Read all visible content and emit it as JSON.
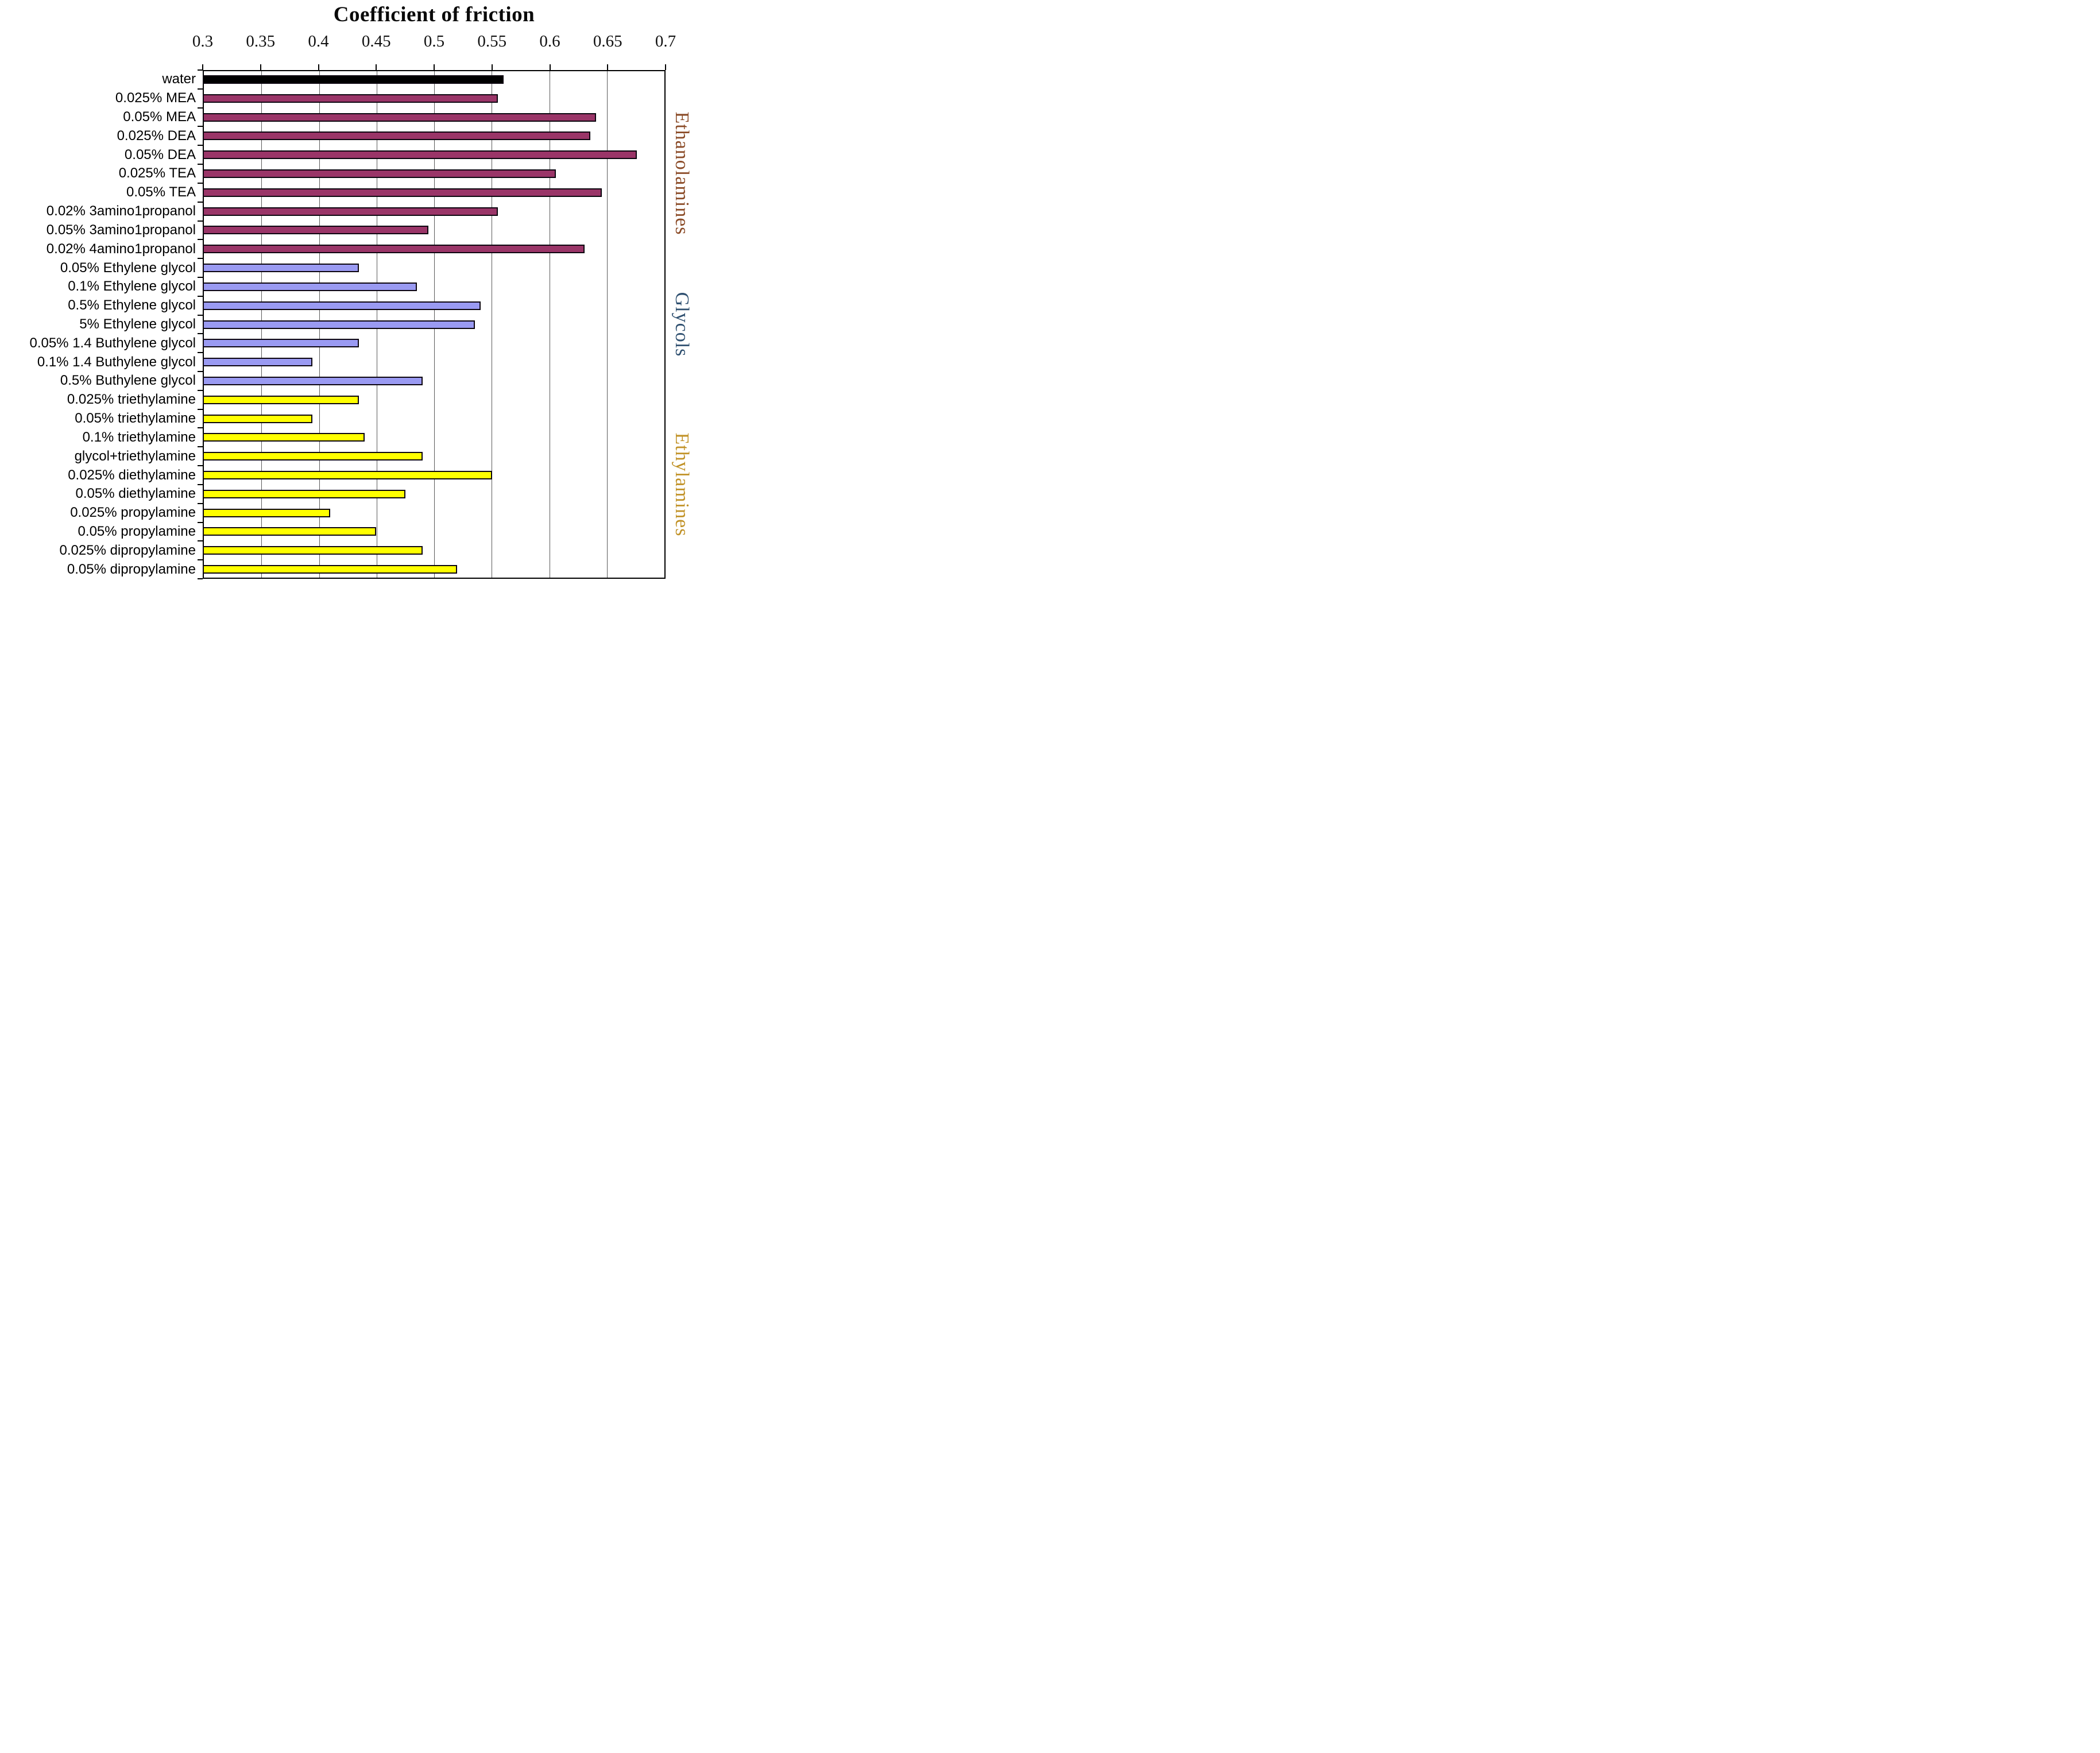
{
  "chart_data": {
    "type": "bar",
    "orientation": "horizontal",
    "title": "Coefficient of friction",
    "xlabel": "",
    "ylabel": "",
    "xlim": [
      0.3,
      0.7
    ],
    "x_ticks": [
      0.3,
      0.35,
      0.4,
      0.45,
      0.5,
      0.55,
      0.6,
      0.65,
      0.7
    ],
    "x_tick_labels": [
      "0.3",
      "0.35",
      "0.4",
      "0.45",
      "0.5",
      "0.55",
      "0.6",
      "0.65",
      "0.7"
    ],
    "grid": true,
    "categories": [
      "water",
      "0.025% MEA",
      "0.05% MEA",
      "0.025% DEA",
      "0.05% DEA",
      "0.025% TEA",
      "0.05% TEA",
      "0.02% 3amino1propanol",
      "0.05% 3amino1propanol",
      "0.02% 4amino1propanol",
      "0.05% Ethylene glycol",
      "0.1% Ethylene glycol",
      "0.5% Ethylene glycol",
      "5% Ethylene glycol",
      "0.05% 1.4 Buthylene glycol",
      "0.1% 1.4 Buthylene glycol",
      "0.5% Buthylene glycol",
      "0.025% triethylamine",
      "0.05% triethylamine",
      "0.1% triethylamine",
      "glycol+triethylamine",
      "0.025% diethylamine",
      "0.05% diethylamine",
      "0.025% propylamine",
      "0.05% propylamine",
      "0.025% dipropylamine",
      "0.05% dipropylamine"
    ],
    "values": [
      0.56,
      0.555,
      0.64,
      0.635,
      0.675,
      0.605,
      0.645,
      0.555,
      0.495,
      0.63,
      0.435,
      0.485,
      0.54,
      0.535,
      0.435,
      0.395,
      0.49,
      0.435,
      0.395,
      0.44,
      0.49,
      0.55,
      0.475,
      0.41,
      0.45,
      0.49,
      0.52
    ],
    "bar_groups": [
      "water",
      "ethanolamines",
      "ethanolamines",
      "ethanolamines",
      "ethanolamines",
      "ethanolamines",
      "ethanolamines",
      "ethanolamines",
      "ethanolamines",
      "ethanolamines",
      "glycols",
      "glycols",
      "glycols",
      "glycols",
      "glycols",
      "glycols",
      "glycols",
      "ethylamines",
      "ethylamines",
      "ethylamines",
      "ethylamines",
      "ethylamines",
      "ethylamines",
      "ethylamines",
      "ethylamines",
      "ethylamines",
      "ethylamines"
    ],
    "group_colors": {
      "water": "#000000",
      "ethanolamines": "#9a3568",
      "glycols": "#9a9af2",
      "ethylamines": "#ffff00"
    },
    "group_labels": [
      {
        "text": "Ethanolamines",
        "color": "#8a4a26",
        "start_index": 1,
        "end_index": 9
      },
      {
        "text": "Glycols",
        "color": "#2f5070",
        "start_index": 10,
        "end_index": 16
      },
      {
        "text": "Ethylamines",
        "color": "#c19227",
        "start_index": 17,
        "end_index": 26
      }
    ],
    "legend": "none"
  }
}
